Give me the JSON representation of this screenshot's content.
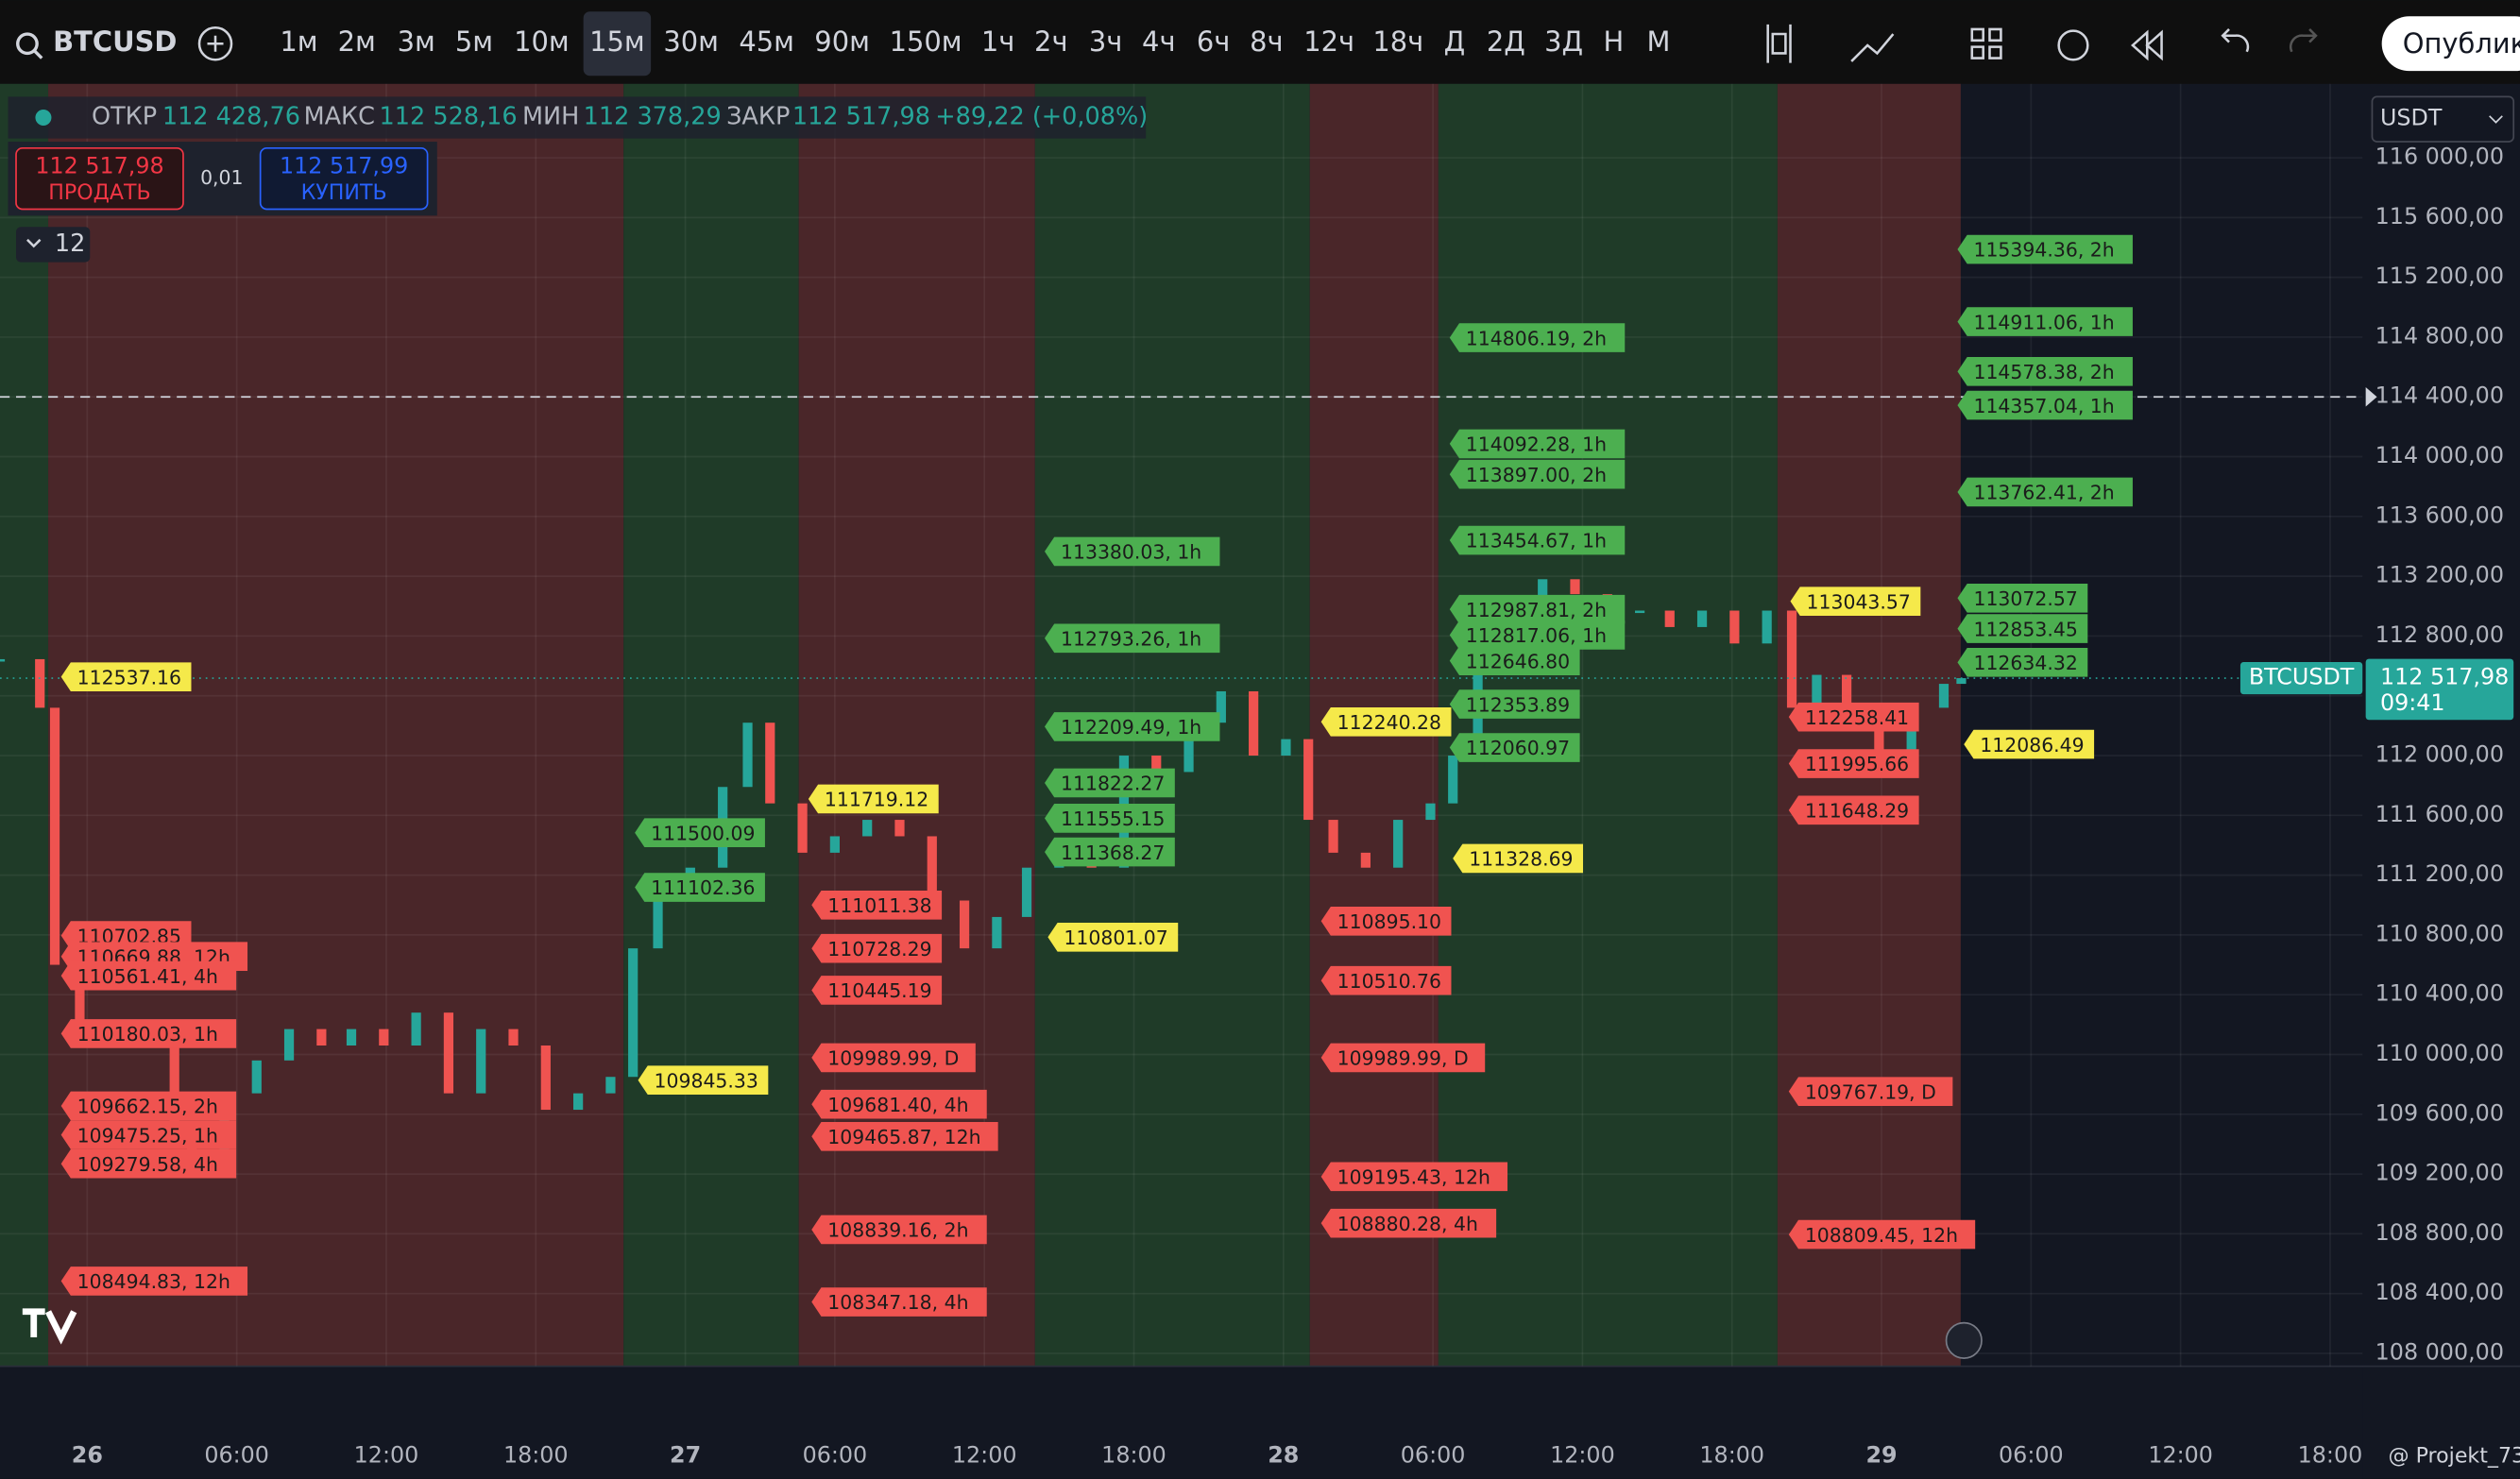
{
  "toolbar": {
    "symbol": "BTCUSD",
    "intervals": [
      "1м",
      "2м",
      "3м",
      "5м",
      "10м",
      "15м",
      "30м",
      "45м",
      "90м",
      "150м",
      "1ч",
      "2ч",
      "3ч",
      "4ч",
      "6ч",
      "8ч",
      "12ч",
      "18ч",
      "Д",
      "2Д",
      "3Д",
      "Н",
      "М"
    ],
    "active_index": 5,
    "publish": "Опублико"
  },
  "legend": {
    "open_label": "ОТКР",
    "open": "112 428,76",
    "high_label": "МАКС",
    "high": "112 528,16",
    "low_label": "МИН",
    "low": "112 378,29",
    "close_label": "ЗАКР",
    "close": "112 517,98",
    "change": "+89,22 (+0,08%)"
  },
  "trade": {
    "sell_price": "112 517,98",
    "sell": "ПРОДАТЬ",
    "qty": "0,01",
    "buy_price": "112 517,99",
    "buy": "КУПИТЬ"
  },
  "indicators_count": "12",
  "currency": "USDT",
  "chart": {
    "ylim": [
      108000,
      116000
    ],
    "yticks": [
      {
        "value": 108000,
        "label": "108 000,00"
      },
      {
        "value": 108400,
        "label": "108 400,00"
      },
      {
        "value": 108800,
        "label": "108 800,00"
      },
      {
        "value": 109200,
        "label": "109 200,00"
      },
      {
        "value": 109600,
        "label": "109 600,00"
      },
      {
        "value": 110000,
        "label": "110 000,00"
      },
      {
        "value": 110400,
        "label": "110 400,00"
      },
      {
        "value": 110800,
        "label": "110 800,00"
      },
      {
        "value": 111200,
        "label": "111 200,00"
      },
      {
        "value": 111600,
        "label": "111 600,00"
      },
      {
        "value": 112000,
        "label": "112 000,00"
      },
      {
        "value": 112400,
        "label": "112 400,00"
      },
      {
        "value": 112800,
        "label": "112 800,00"
      },
      {
        "value": 113200,
        "label": "113 200,00"
      },
      {
        "value": 113600,
        "label": "113 600,00"
      },
      {
        "value": 114000,
        "label": "114 000,00"
      },
      {
        "value": 114400,
        "label": "114 400,00"
      },
      {
        "value": 114800,
        "label": "114 800,00"
      },
      {
        "value": 115200,
        "label": "115 200,00"
      },
      {
        "value": 115600,
        "label": "115 600,00"
      },
      {
        "value": 116000,
        "label": "116 000,00"
      }
    ],
    "xlim": [
      -3.5,
      91.3
    ],
    "xticks": [
      {
        "value": 0,
        "label": "26"
      },
      {
        "value": 6,
        "label": "06:00"
      },
      {
        "value": 12,
        "label": "12:00"
      },
      {
        "value": 18,
        "label": "18:00"
      },
      {
        "value": 24,
        "label": "27"
      },
      {
        "value": 30,
        "label": "06:00"
      },
      {
        "value": 36,
        "label": "12:00"
      },
      {
        "value": 42,
        "label": "18:00"
      },
      {
        "value": 48,
        "label": "28"
      },
      {
        "value": 54,
        "label": "06:00"
      },
      {
        "value": 60,
        "label": "12:00"
      },
      {
        "value": 66,
        "label": "18:00"
      },
      {
        "value": 72,
        "label": "29"
      },
      {
        "value": 78,
        "label": "06:00"
      },
      {
        "value": 84,
        "label": "12:00"
      },
      {
        "value": 90,
        "label": "18:00"
      }
    ],
    "price": {
      "x": [
        -3.5,
        -1.9,
        -1.3,
        -0.3,
        1.0,
        2.3,
        3.5,
        4.2,
        5.5,
        6.8,
        8.1,
        9.4,
        10.6,
        11.9,
        13.2,
        14.5,
        15.8,
        17.1,
        18.4,
        19.7,
        21.0,
        21.9,
        22.9,
        24.2,
        25.5,
        26.5,
        27.4,
        28.7,
        30.0,
        31.3,
        32.6,
        33.9,
        35.2,
        36.5,
        37.7,
        39.0,
        40.3,
        41.6,
        42.9,
        44.2,
        45.5,
        46.8,
        48.1,
        49.0,
        50.0,
        51.3,
        52.6,
        53.9,
        54.8,
        55.8,
        57.1,
        58.4,
        59.7,
        61.0,
        62.3,
        63.5,
        64.8,
        66.1,
        67.4,
        68.4,
        69.4,
        70.6,
        71.9,
        73.2,
        74.5,
        75.2
      ],
      "values": [
        112645,
        112320,
        110600,
        110170,
        110060,
        110170,
        109530,
        109200,
        109740,
        109960,
        110170,
        110060,
        110170,
        110060,
        110280,
        109740,
        110170,
        110060,
        109630,
        109740,
        109850,
        110710,
        111030,
        111250,
        111790,
        112220,
        111680,
        111350,
        111460,
        111570,
        111460,
        111030,
        110710,
        110920,
        111250,
        111350,
        111250,
        112000,
        111890,
        112220,
        112430,
        112000,
        112110,
        111570,
        111350,
        111250,
        111570,
        111680,
        112000,
        112540,
        112970,
        113180,
        113080,
        112970,
        112970,
        112860,
        112970,
        112750,
        112970,
        112320,
        112540,
        112220,
        112000,
        112320,
        112480,
        112518
      ]
    },
    "last_price": {
      "symbol": "BTCUSDT",
      "value": 112517.98,
      "label": "112 517,98",
      "countdown": "09:41"
    },
    "alert_level": 114400
  },
  "labels": {
    "green": {
      "color": "#4caf50",
      "items": [
        "115394.36, 2h",
        "114911.06, 1h",
        "114578.38, 2h",
        "114357.04, 1h",
        "113762.41, 2h",
        "113072.57",
        "112853.45",
        "112634.32",
        "114806.19, 2h",
        "114092.28, 1h",
        "113897.00, 2h",
        "113454.67, 1h",
        "112987.81, 2h",
        "112817.06, 1h",
        "112646.80",
        "112353.89",
        "112060.97",
        "113380.03, 1h",
        "112793.26, 1h",
        "112209.49, 1h",
        "111822.27",
        "111555.15",
        "111368.27",
        "111500.09",
        "111102.36"
      ]
    },
    "red": {
      "color": "#f05350",
      "items": [
        "110702.85",
        "110669.88, 12h",
        "110561.41, 4h",
        "110180.03, 1h",
        "109662.15, 2h",
        "109475.25, 1h",
        "109279.58, 4h",
        "108494.83, 12h",
        "111011.38",
        "110728.29",
        "110445.19",
        "109989.99, D",
        "109681.40, 4h",
        "109465.87, 12h",
        "108839.16, 2h",
        "108347.18, 4h",
        "110895.10",
        "110510.76",
        "109989.99, D",
        "109195.43, 12h",
        "108880.28, 4h",
        "112258.41",
        "111995.66",
        "111648.29",
        "109767.19, D",
        "108809.45, 12h"
      ]
    },
    "yellow": {
      "color": "#f5e94a",
      "items": [
        "112537.16",
        "111719.12",
        "109845.33",
        "110801.07",
        "112240.28",
        "111328.69",
        "113043.57",
        "112086.49"
      ]
    }
  },
  "watermark": "@ Projekt_73"
}
